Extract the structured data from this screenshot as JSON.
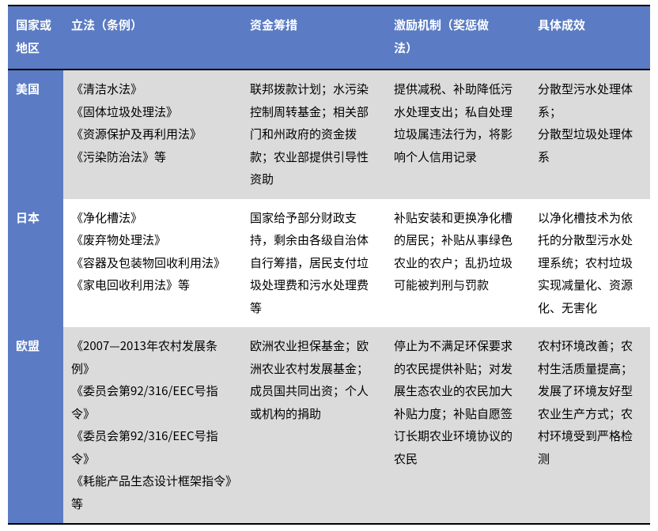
{
  "colors": {
    "header_bg": "#5b7cc4",
    "header_text": "#ffffff",
    "row_alt_bg": "#dbdbdb",
    "row_bg": "#ffffff",
    "border": "#000000",
    "body_text": "#000000"
  },
  "typography": {
    "font_family": "Microsoft YaHei, PingFang SC, Noto Sans CJK SC, sans-serif",
    "header_font_size_pt": 11,
    "cell_font_size_pt": 11,
    "line_height": 1.9
  },
  "columns": [
    {
      "label_line1": "国家或",
      "label_line2": "地区"
    },
    {
      "label_line1": "立法（条例）",
      "label_line2": ""
    },
    {
      "label_line1": "资金筹措",
      "label_line2": ""
    },
    {
      "label_line1": "激励机制（奖惩做",
      "label_line2": "法）"
    },
    {
      "label_line1": "具体成效",
      "label_line2": ""
    }
  ],
  "rows": [
    {
      "region": "美国",
      "legislation": [
        "《清洁水法》",
        "《固体垃圾处理法》",
        "《资源保护及再利用法》",
        "《污染防治法》等"
      ],
      "funding": "联邦拨款计划；水污染控制周转基金；相关部门和州政府的资金拨款；农业部提供引导性资助",
      "incentive": "提供减税、补助降低污水处理支出；私自处理垃圾属违法行为，将影响个人信用记录",
      "outcome": "分散型污水处理体系；\n分散型垃圾处理体系"
    },
    {
      "region": "日本",
      "legislation": [
        "《净化槽法》",
        "《废弃物处理法》",
        "《容器及包装物回收利用法》",
        "《家电回收利用法》等"
      ],
      "funding": "国家给予部分财政支持，剩余由各级自治体自行筹措，居民支付垃圾处理费和污水处理费等",
      "incentive": "补贴安装和更换净化槽的居民；补贴从事绿色农业的农户；乱扔垃圾可能被判刑与罚款",
      "outcome": "以净化槽技术为依托的分散型污水处理系统；农村垃圾实现减量化、资源化、无害化"
    },
    {
      "region": "欧盟",
      "legislation": [
        "《2007—2013年农村发展条例》",
        "《委员会第92/316/EEC号指令》",
        "《委员会第92/316/EEC号指令》",
        "《耗能产品生态设计框架指令》等"
      ],
      "funding": "欧洲农业担保基金；欧洲农业农村发展基金；成员国共同出资；个人或机构的捐助",
      "incentive": "停止为不满足环保要求的农民提供补贴；对发展生态农业的农民加大补贴力度；补贴自愿签订长期农业环境协议的农民",
      "outcome": "农村环境改善；农村生活质量提高；发展了环境友好型农业生产方式；农村环境受到严格检测"
    }
  ]
}
